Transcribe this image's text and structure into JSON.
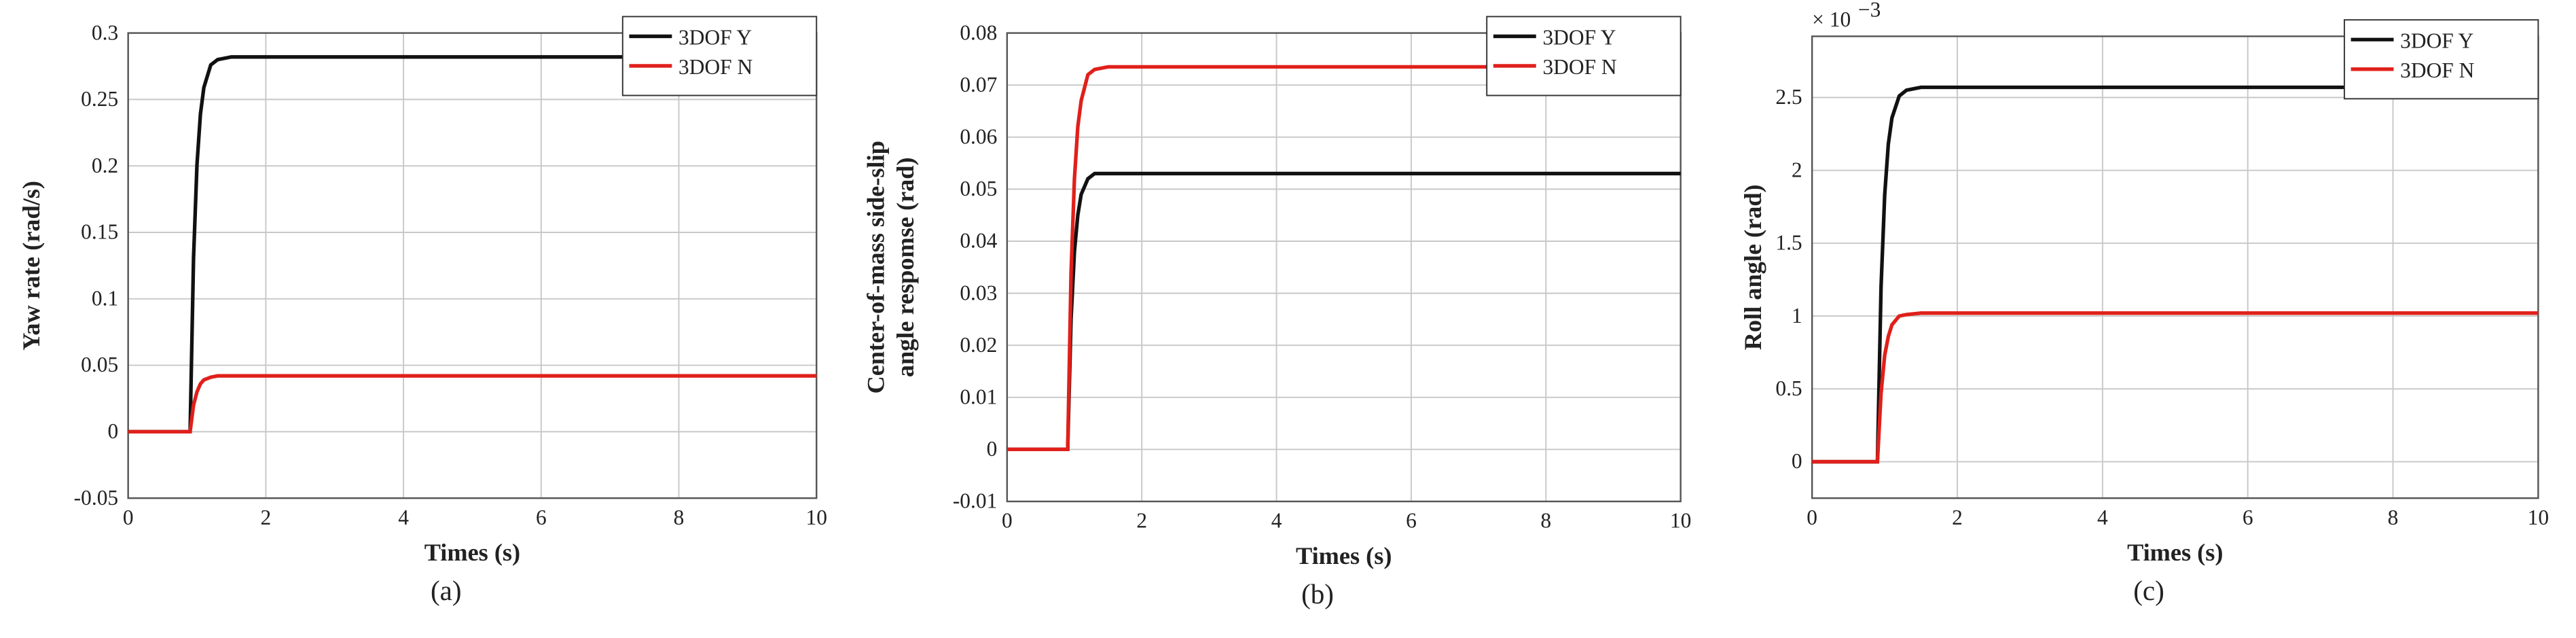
{
  "chart_data": {
    "charts": [
      {
        "type": "line",
        "caption": "(a)",
        "xlabel": "Times (s)",
        "ylabel": [
          "Yaw rate (rad/s)"
        ],
        "x": [
          0,
          0.9,
          0.95,
          1.0,
          1.05,
          1.1,
          1.2,
          1.3,
          1.5,
          2,
          4,
          6,
          8,
          10
        ],
        "series": [
          {
            "name": "3DOF Y",
            "color": "#111111",
            "values": [
              0,
              0,
              0.131,
              0.201,
              0.239,
              0.259,
              0.276,
              0.28,
              0.282,
              0.282,
              0.282,
              0.282,
              0.282,
              0.282
            ]
          },
          {
            "name": "3DOF N",
            "color": "#e0201b",
            "values": [
              0,
              0,
              0.02,
              0.03,
              0.036,
              0.039,
              0.041,
              0.042,
              0.042,
              0.042,
              0.042,
              0.042,
              0.042,
              0.042
            ]
          }
        ],
        "xlim": [
          0,
          10
        ],
        "xticks": [
          0,
          2,
          4,
          6,
          8,
          10
        ],
        "ylim": [
          -0.05,
          0.3
        ],
        "yticks": [
          -0.05,
          0,
          0.05,
          0.1,
          0.15,
          0.2,
          0.25,
          0.3
        ],
        "grid": true,
        "legend": "upper right"
      },
      {
        "type": "line",
        "caption": "(b)",
        "xlabel": "Times (s)",
        "ylabel": [
          "Center-of-mass side-slip",
          "angle respomse (rad)"
        ],
        "x": [
          0,
          0.9,
          0.95,
          1.0,
          1.05,
          1.1,
          1.2,
          1.3,
          1.5,
          2,
          4,
          6,
          8,
          10
        ],
        "series": [
          {
            "name": "3DOF Y",
            "color": "#111111",
            "values": [
              0,
              0,
              0.025,
              0.038,
              0.045,
              0.049,
              0.052,
              0.053,
              0.053,
              0.053,
              0.053,
              0.053,
              0.053,
              0.053
            ]
          },
          {
            "name": "3DOF N",
            "color": "#e0201b",
            "values": [
              0,
              0,
              0.034,
              0.052,
              0.062,
              0.067,
              0.072,
              0.073,
              0.0735,
              0.0735,
              0.0735,
              0.0735,
              0.0735,
              0.0735
            ]
          }
        ],
        "xlim": [
          0,
          10
        ],
        "xticks": [
          0,
          2,
          4,
          6,
          8,
          10
        ],
        "ylim": [
          -0.01,
          0.08
        ],
        "yticks": [
          -0.01,
          0,
          0.01,
          0.02,
          0.03,
          0.04,
          0.05,
          0.06,
          0.07,
          0.08
        ],
        "grid": true,
        "legend": "upper right"
      },
      {
        "type": "line",
        "caption": "(c)",
        "xlabel": "Times (s)",
        "ylabel": [
          "Roll angle (rad)"
        ],
        "y_multiplier": "× 10",
        "y_multiplier_exponent": "−3",
        "x": [
          0,
          0.9,
          0.95,
          1.0,
          1.05,
          1.1,
          1.2,
          1.3,
          1.5,
          2,
          4,
          6,
          8,
          10
        ],
        "series": [
          {
            "name": "3DOF Y",
            "color": "#111111",
            "values": [
              0,
              0,
              1.2,
              1.83,
              2.18,
              2.36,
              2.51,
              2.55,
              2.57,
              2.57,
              2.57,
              2.57,
              2.57,
              2.57
            ]
          },
          {
            "name": "3DOF N",
            "color": "#e0201b",
            "values": [
              0,
              0,
              0.47,
              0.73,
              0.86,
              0.94,
              1.0,
              1.01,
              1.02,
              1.02,
              1.02,
              1.02,
              1.02,
              1.02
            ]
          }
        ],
        "xlim": [
          0,
          10
        ],
        "xticks": [
          0,
          2,
          4,
          6,
          8,
          10
        ],
        "ylim": [
          -0.25,
          2.92
        ],
        "yticks": [
          0,
          0.5,
          1,
          1.5,
          2,
          2.5
        ],
        "grid": true,
        "legend": "upper right"
      }
    ]
  }
}
